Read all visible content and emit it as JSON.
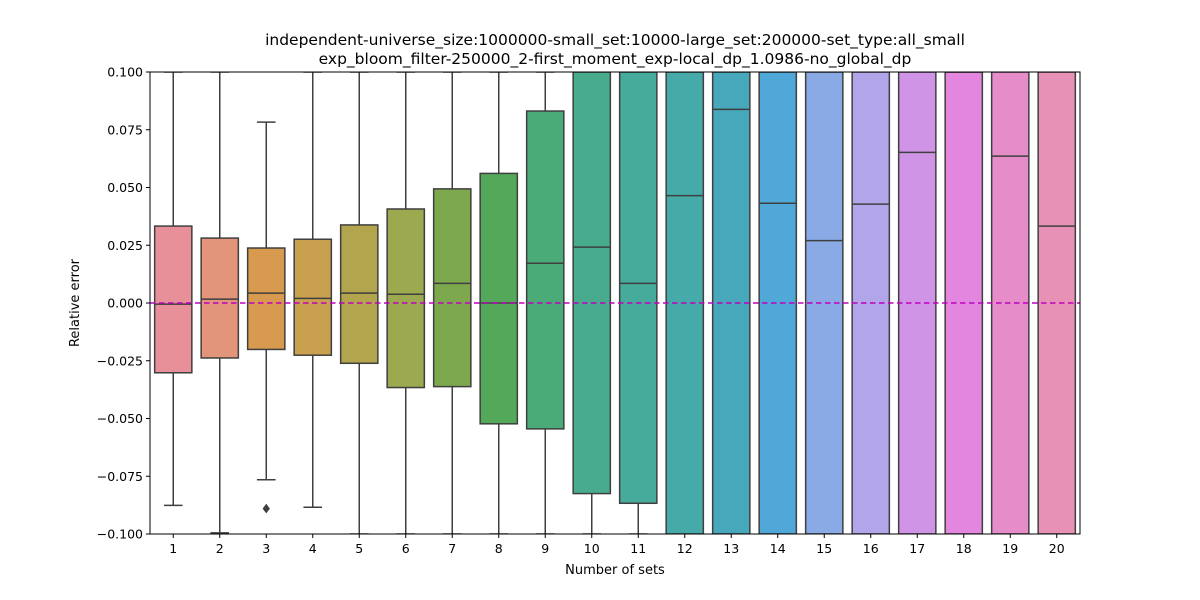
{
  "chart_data": {
    "type": "boxplot",
    "title_line1": "independent-universe_size:1000000-small_set:10000-large_set:200000-set_type:all_small",
    "title_line2": "exp_bloom_filter-250000_2-first_moment_exp-local_dp_1.0986-no_global_dp",
    "xlabel": "Number of sets",
    "ylabel": "Relative error",
    "ylim": [
      -0.1,
      0.1
    ],
    "yticks": [
      -0.1,
      -0.075,
      -0.05,
      -0.025,
      0.0,
      0.025,
      0.05,
      0.075,
      0.1
    ],
    "ytick_labels": [
      "−0.100",
      "−0.075",
      "−0.050",
      "−0.025",
      "0.000",
      "0.025",
      "0.050",
      "0.075",
      "0.100"
    ],
    "categories": [
      "1",
      "2",
      "3",
      "4",
      "5",
      "6",
      "7",
      "8",
      "9",
      "10",
      "11",
      "12",
      "13",
      "14",
      "15",
      "16",
      "17",
      "18",
      "19",
      "20"
    ],
    "reference_line": {
      "y": 0.0,
      "style": "dashed",
      "color": "#bf00bf"
    },
    "grid": false,
    "boxes": [
      {
        "q1": -0.0302,
        "median": -0.0005,
        "q3": 0.0333,
        "whisker_low": -0.0876,
        "whisker_high": 0.1,
        "outliers": [],
        "color": "#e8909a"
      },
      {
        "q1": -0.0238,
        "median": 0.0017,
        "q3": 0.0281,
        "whisker_low": -0.0995,
        "whisker_high": 0.1,
        "outliers": [],
        "color": "#e2957a"
      },
      {
        "q1": -0.0201,
        "median": 0.0043,
        "q3": 0.0238,
        "whisker_low": -0.0765,
        "whisker_high": 0.0783,
        "outliers": [
          -0.089
        ],
        "color": "#d89a4f"
      },
      {
        "q1": -0.0226,
        "median": 0.002,
        "q3": 0.0276,
        "whisker_low": -0.0884,
        "whisker_high": 0.1,
        "outliers": [],
        "color": "#c9a04e"
      },
      {
        "q1": -0.0261,
        "median": 0.0043,
        "q3": 0.0338,
        "whisker_low": -0.1,
        "whisker_high": 0.1,
        "outliers": [],
        "color": "#b3a54e"
      },
      {
        "q1": -0.0366,
        "median": 0.0038,
        "q3": 0.0407,
        "whisker_low": -0.1,
        "whisker_high": 0.1,
        "outliers": [],
        "color": "#9ca94e"
      },
      {
        "q1": -0.0362,
        "median": 0.0085,
        "q3": 0.0494,
        "whisker_low": -0.1,
        "whisker_high": 0.1,
        "outliers": [],
        "color": "#7ea84e"
      },
      {
        "q1": -0.0523,
        "median": 0.0,
        "q3": 0.0561,
        "whisker_low": -0.1,
        "whisker_high": 0.1,
        "outliers": [],
        "color": "#54a85a"
      },
      {
        "q1": -0.0545,
        "median": 0.0172,
        "q3": 0.0831,
        "whisker_low": -0.1,
        "whisker_high": 0.1,
        "outliers": [],
        "color": "#4aaa78"
      },
      {
        "q1": -0.0825,
        "median": 0.0242,
        "q3": 0.1,
        "whisker_low": -0.1,
        "whisker_high": 0.1,
        "outliers": [],
        "color": "#48ab8d"
      },
      {
        "q1": -0.0867,
        "median": 0.0085,
        "q3": 0.1,
        "whisker_low": -0.1,
        "whisker_high": 0.1,
        "outliers": [],
        "color": "#47ab9c"
      },
      {
        "q1": -0.1,
        "median": 0.0465,
        "q3": 0.1,
        "whisker_low": -0.1,
        "whisker_high": 0.1,
        "outliers": [],
        "color": "#46aaa9"
      },
      {
        "q1": -0.1,
        "median": 0.0838,
        "q3": 0.1,
        "whisker_low": -0.1,
        "whisker_high": 0.1,
        "outliers": [],
        "color": "#47a8bb"
      },
      {
        "q1": -0.1,
        "median": 0.0432,
        "q3": 0.1,
        "whisker_low": -0.1,
        "whisker_high": 0.1,
        "outliers": [],
        "color": "#4fa8d8"
      },
      {
        "q1": -0.1,
        "median": 0.027,
        "q3": 0.1,
        "whisker_low": -0.1,
        "whisker_high": 0.1,
        "outliers": [],
        "color": "#8aaae6"
      },
      {
        "q1": -0.1,
        "median": 0.0428,
        "q3": 0.1,
        "whisker_low": -0.1,
        "whisker_high": 0.1,
        "outliers": [],
        "color": "#b3a5ea"
      },
      {
        "q1": -0.1,
        "median": 0.0652,
        "q3": 0.1,
        "whisker_low": -0.1,
        "whisker_high": 0.1,
        "outliers": [],
        "color": "#cf94e6"
      },
      {
        "q1": -0.1,
        "median": 0.1,
        "q3": 0.1,
        "whisker_low": -0.1,
        "whisker_high": 0.1,
        "outliers": [],
        "color": "#e286e0"
      },
      {
        "q1": -0.1,
        "median": 0.0636,
        "q3": 0.1,
        "whisker_low": -0.1,
        "whisker_high": 0.1,
        "outliers": [],
        "color": "#e68cc8"
      },
      {
        "q1": -0.1,
        "median": 0.0333,
        "q3": 0.1,
        "whisker_low": -0.1,
        "whisker_high": 0.1,
        "outliers": [],
        "color": "#e691b5"
      }
    ]
  }
}
